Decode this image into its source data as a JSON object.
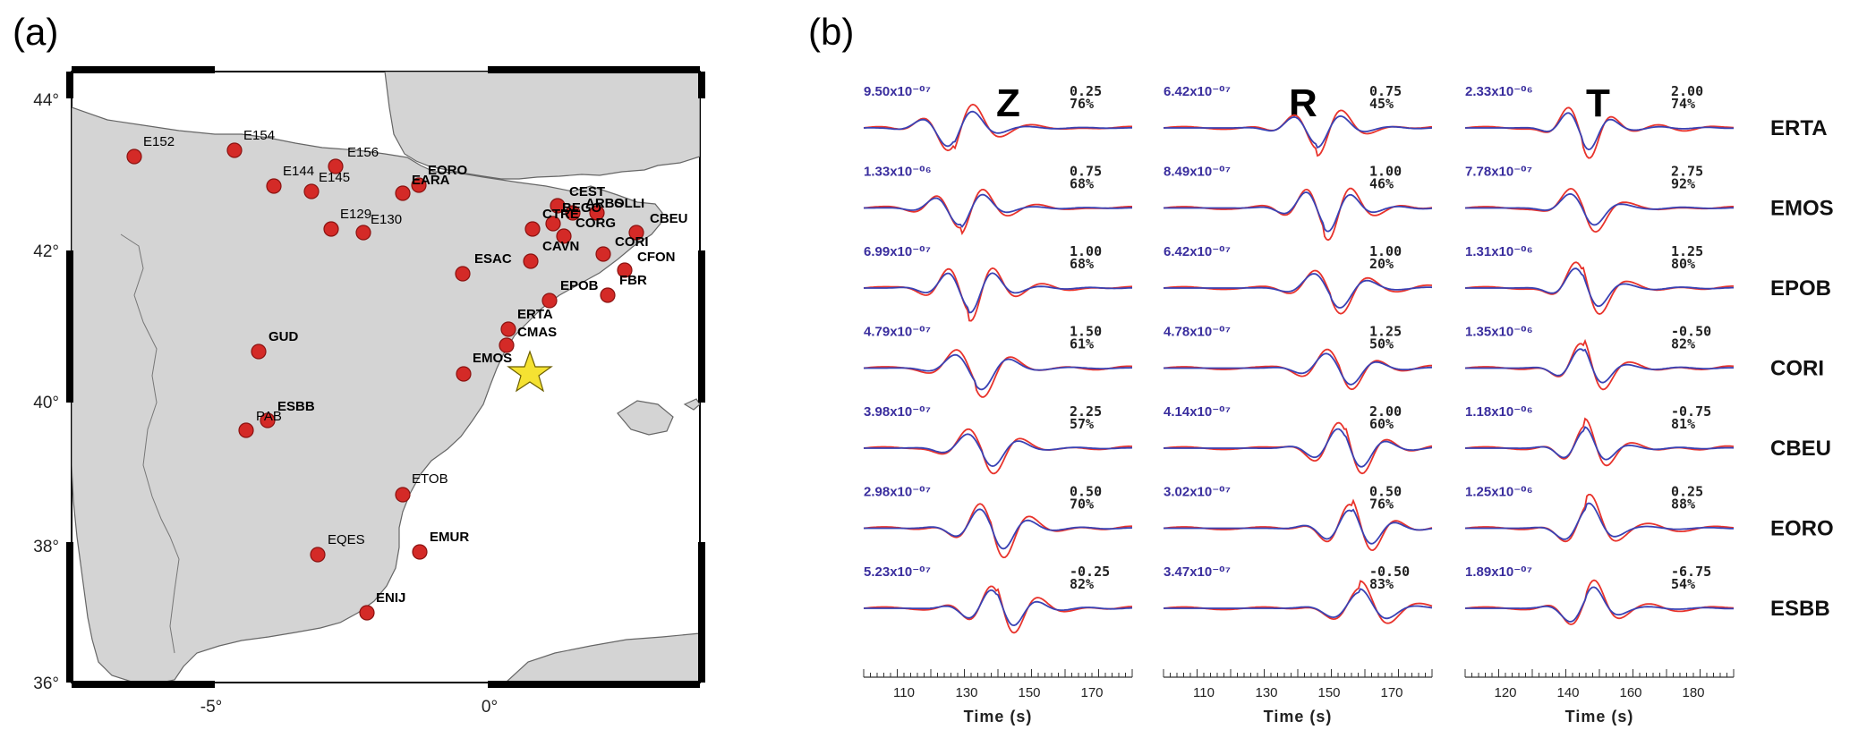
{
  "panel_a": {
    "label": "(a)",
    "lat_ticks": [
      "44°",
      "42°",
      "40°",
      "38°",
      "36°"
    ],
    "lon_ticks": [
      "-5°",
      "0°"
    ],
    "stations": [
      "E152",
      "E154",
      "E156",
      "E144",
      "E145",
      "E129",
      "E130",
      "EORO",
      "EARA",
      "CEST",
      "ARBS",
      "OLLI",
      "CTRE",
      "BEGO",
      "CORG",
      "CBEU",
      "CAVN",
      "CORI",
      "CFON",
      "ESAC",
      "EPOB",
      "FBR",
      "ERTA",
      "CMAS",
      "EMOS",
      "GUD",
      "ESBB",
      "PAB",
      "ETOB",
      "EQES",
      "EMUR",
      "ENIJ"
    ]
  },
  "panel_b": {
    "label": "(b)",
    "components": [
      "Z",
      "R",
      "T"
    ],
    "stations": [
      "ERTA",
      "EMOS",
      "EPOB",
      "CORI",
      "CBEU",
      "EORO",
      "ESBB"
    ],
    "amplitudes": [
      [
        "9.50x10⁻⁰⁷",
        "6.42x10⁻⁰⁷",
        "2.33x10⁻⁰⁶"
      ],
      [
        "1.33x10⁻⁰⁶",
        "8.49x10⁻⁰⁷",
        "7.78x10⁻⁰⁷"
      ],
      [
        "6.99x10⁻⁰⁷",
        "6.42x10⁻⁰⁷",
        "1.31x10⁻⁰⁶"
      ],
      [
        "4.79x10⁻⁰⁷",
        "4.78x10⁻⁰⁷",
        "1.35x10⁻⁰⁶"
      ],
      [
        "3.98x10⁻⁰⁷",
        "4.14x10⁻⁰⁷",
        "1.18x10⁻⁰⁶"
      ],
      [
        "2.98x10⁻⁰⁷",
        "3.02x10⁻⁰⁷",
        "1.25x10⁻⁰⁶"
      ],
      [
        "5.23x10⁻⁰⁷",
        "3.47x10⁻⁰⁷",
        "1.89x10⁻⁰⁷"
      ]
    ],
    "shifts": [
      [
        "0.25",
        "0.75",
        "2.00"
      ],
      [
        "0.75",
        "1.00",
        "2.75"
      ],
      [
        "1.00",
        "1.00",
        "1.25"
      ],
      [
        "1.50",
        "1.25",
        "-0.50"
      ],
      [
        "2.25",
        "2.00",
        "-0.75"
      ],
      [
        "0.50",
        "0.50",
        "0.25"
      ],
      [
        "-0.25",
        "-0.50",
        "-6.75"
      ]
    ],
    "fits": [
      [
        "76%",
        "45%",
        "74%"
      ],
      [
        "68%",
        "46%",
        "92%"
      ],
      [
        "68%",
        "20%",
        "80%"
      ],
      [
        "61%",
        "50%",
        "82%"
      ],
      [
        "57%",
        "60%",
        "81%"
      ],
      [
        "70%",
        "76%",
        "88%"
      ],
      [
        "82%",
        "83%",
        "54%"
      ]
    ],
    "x_ticks": [
      [
        "110",
        "130",
        "150",
        "170"
      ],
      [
        "110",
        "130",
        "150",
        "170"
      ],
      [
        "120",
        "140",
        "160",
        "180"
      ]
    ],
    "xlabel": "Time (s)",
    "colors": {
      "observed": "#e8332c",
      "synthetic": "#3942b4",
      "amplitude_text": "#3a2e9e"
    }
  }
}
